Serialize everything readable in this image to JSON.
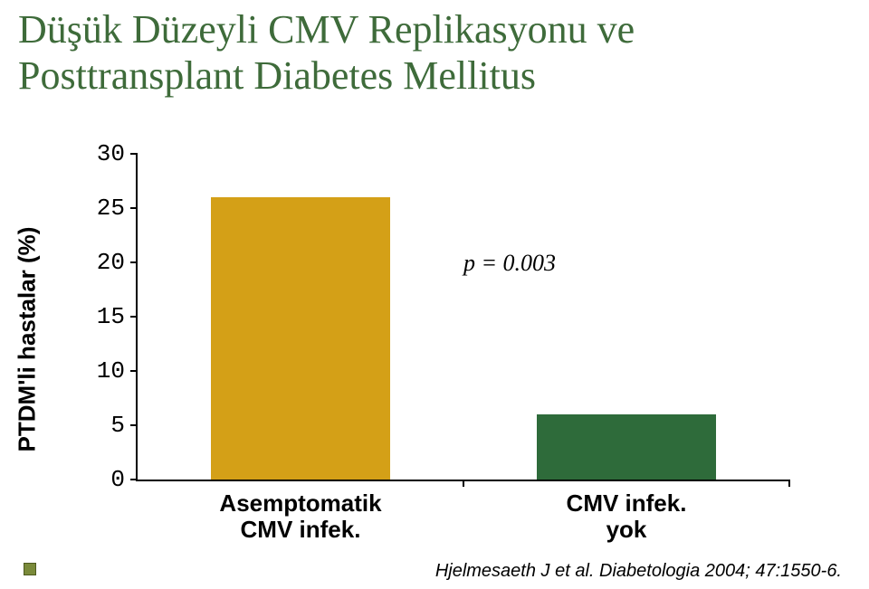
{
  "title": {
    "line1": "Düşük Düzeyli CMV Replikasyonu ve",
    "line2": "Posttransplant Diabetes Mellitus",
    "color": "#3e6b3a",
    "fontsize": 44
  },
  "chart": {
    "type": "bar",
    "ylabel": "PTDM'li hastalar (%)",
    "ylabel_fontsize": 26,
    "ylim": [
      0,
      30
    ],
    "ytick_step": 5,
    "yticks": [
      0,
      5,
      10,
      15,
      20,
      25,
      30
    ],
    "categories": [
      "Asemptomatik\nCMV infek.",
      "CMV infek.\nyok"
    ],
    "values": [
      26,
      6
    ],
    "bar_colors": [
      "#d4a017",
      "#2e6b3a"
    ],
    "bar_width": 0.55,
    "background_color": "#ffffff",
    "axis_color": "#000000",
    "tick_label_fontsize": 26,
    "xtick_label_fontsize": 26,
    "p_value_label": "p = 0.003",
    "p_value_fontsize": 26
  },
  "citation": {
    "text": "Hjelmesaeth J et al. Diabetologia 2004; 47:1550-6.",
    "fontsize": 20,
    "color": "#000000"
  }
}
